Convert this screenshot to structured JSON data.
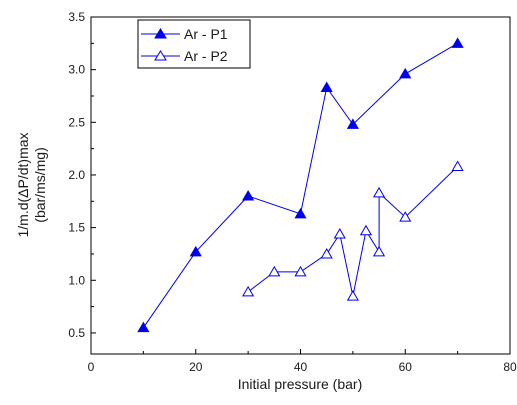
{
  "chart_data": {
    "type": "line",
    "xlabel": "Initial pressure (bar)",
    "ylabel_line1": "1/m.d(ΔP/dt)max",
    "ylabel_line2": "(bar/ms/mg)",
    "xlim": [
      0,
      80
    ],
    "ylim": [
      0.3,
      3.5
    ],
    "x_ticks": [
      0,
      20,
      40,
      60,
      80
    ],
    "y_ticks": [
      0.5,
      1.0,
      1.5,
      2.0,
      2.5,
      3.0,
      3.5
    ],
    "x_tick_labels": [
      "0",
      "20",
      "40",
      "60",
      "80"
    ],
    "y_tick_labels": [
      "0.5",
      "1.0",
      "1.5",
      "2.0",
      "2.5",
      "3.0",
      "3.5"
    ],
    "grid": false,
    "legend_position": "top-left",
    "series": [
      {
        "name": "Ar - P1",
        "marker": "filled-triangle",
        "color": "#0000ee",
        "x": [
          10,
          20,
          30,
          40,
          45,
          50,
          60,
          70
        ],
        "y": [
          0.55,
          1.27,
          1.8,
          1.63,
          2.83,
          2.48,
          2.96,
          3.25
        ]
      },
      {
        "name": "Ar - P2",
        "marker": "open-triangle",
        "color": "#0000ee",
        "x": [
          30,
          35,
          40,
          45,
          47.5,
          50,
          52.5,
          55,
          55,
          60,
          70
        ],
        "y": [
          0.89,
          1.08,
          1.08,
          1.25,
          1.44,
          0.85,
          1.47,
          1.27,
          1.83,
          1.6,
          2.08
        ]
      }
    ]
  }
}
